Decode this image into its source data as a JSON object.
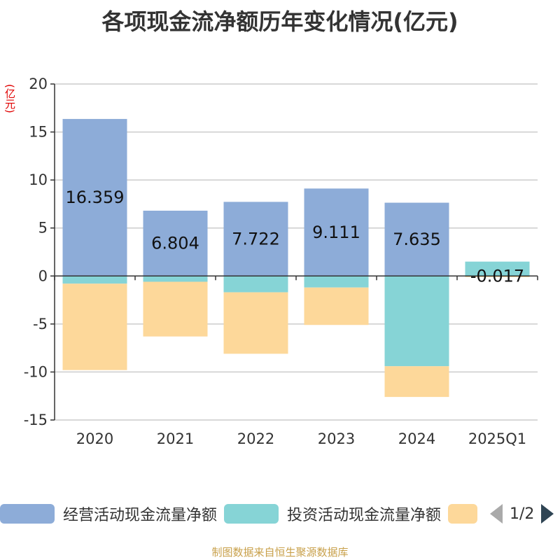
{
  "chart_data": {
    "type": "bar",
    "stacked": true,
    "title": "各项现金流净额历年变化情况(亿元)",
    "ylabel": "(亿元)",
    "categories": [
      "2020",
      "2021",
      "2022",
      "2023",
      "2024",
      "2025Q1"
    ],
    "ylim": [
      -15,
      20
    ],
    "yticks": [
      20,
      15,
      10,
      5,
      0,
      -5,
      -10,
      -15
    ],
    "grid": true,
    "series": [
      {
        "name": "经营活动现金流量净额",
        "color": "#8dacd8",
        "values": [
          16.359,
          6.804,
          7.722,
          9.111,
          7.635,
          -0.017
        ]
      },
      {
        "name": "投资活动现金流量净额",
        "color": "#86d4d6",
        "values": [
          -0.8,
          -0.6,
          -1.7,
          -1.2,
          -9.4,
          1.5
        ]
      },
      {
        "name": "",
        "color": "#fdd89a",
        "values": [
          -9.0,
          -5.7,
          -6.4,
          -3.9,
          -3.2,
          -0.1
        ]
      }
    ],
    "data_labels": [
      "16.359",
      "6.804",
      "7.722",
      "9.111",
      "7.635",
      "-0.017"
    ],
    "legend_position": "bottom"
  },
  "legend": {
    "items": [
      {
        "label": "经营活动现金流量净额",
        "color": "#8dacd8"
      },
      {
        "label": "投资活动现金流量净额",
        "color": "#86d4d6"
      },
      {
        "label": "",
        "color": "#fdd89a"
      }
    ],
    "page_indicator": "1/2"
  },
  "source": "制图数据来自恒生聚源数据库"
}
